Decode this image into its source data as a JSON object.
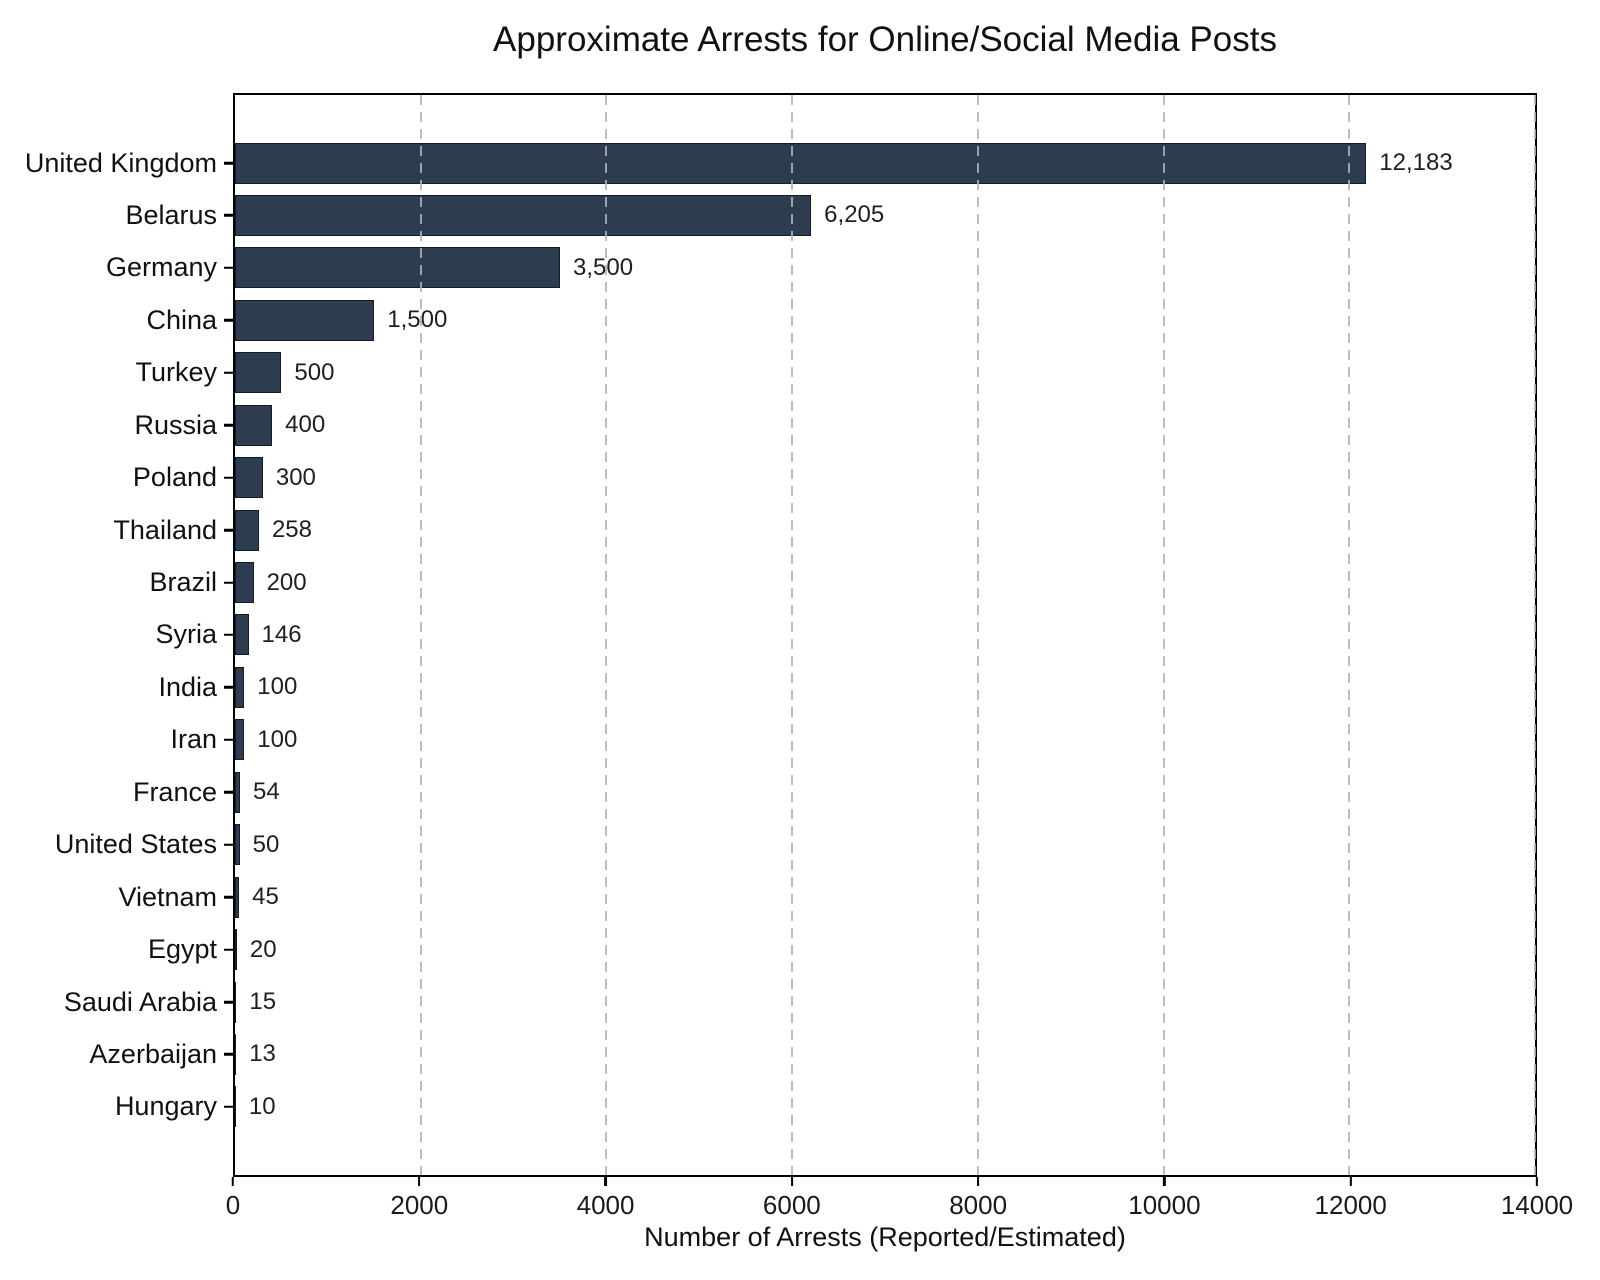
{
  "chart_data": {
    "type": "bar",
    "orientation": "horizontal",
    "title": "Approximate Arrests for Online/Social Media Posts",
    "xlabel": "Number of Arrests (Reported/Estimated)",
    "categories": [
      "United Kingdom",
      "Belarus",
      "Germany",
      "China",
      "Turkey",
      "Russia",
      "Poland",
      "Thailand",
      "Brazil",
      "Syria",
      "India",
      "Iran",
      "France",
      "United States",
      "Vietnam",
      "Egypt",
      "Saudi Arabia",
      "Azerbaijan",
      "Hungary"
    ],
    "values": [
      12183,
      6205,
      3500,
      1500,
      500,
      400,
      300,
      258,
      200,
      146,
      100,
      100,
      54,
      50,
      45,
      20,
      15,
      13,
      10
    ],
    "value_labels": [
      "12,183",
      "6,205",
      "3,500",
      "1,500",
      "500",
      "400",
      "300",
      "258",
      "200",
      "146",
      "100",
      "100",
      "54",
      "50",
      "45",
      "20",
      "15",
      "13",
      "10"
    ],
    "xlim": [
      0,
      14000
    ],
    "xticks": [
      0,
      2000,
      4000,
      6000,
      8000,
      10000,
      12000,
      14000
    ],
    "xtick_labels": [
      "0",
      "2000",
      "4000",
      "6000",
      "8000",
      "10000",
      "12000",
      "14000"
    ],
    "grid": {
      "axis": "x",
      "style": "dashed",
      "over_bars": true
    },
    "legend": null,
    "colors": {
      "bar_fill": "#2d3c4e",
      "bar_edge": "#131d28",
      "gridline": "#b2b2b2",
      "spine": "#000000",
      "text": "#1a1a1a"
    }
  }
}
